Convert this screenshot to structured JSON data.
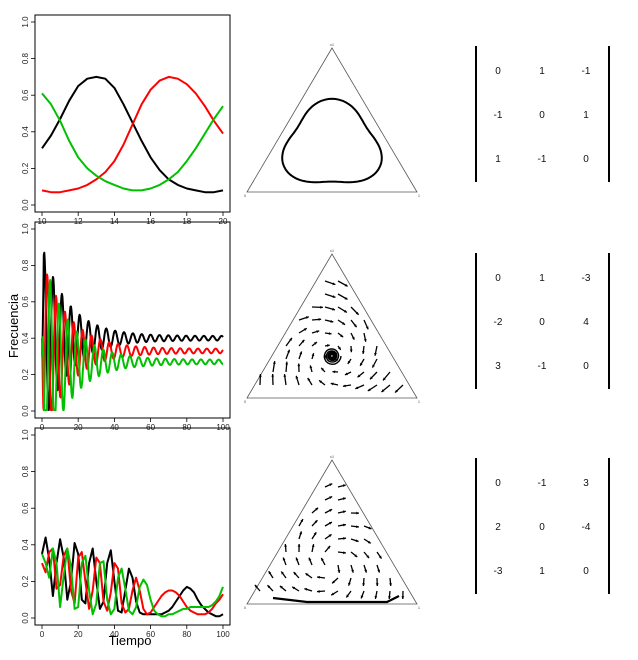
{
  "axis_labels": {
    "x": "Tiempo",
    "y": "Frecuencia"
  },
  "series_colors": [
    "#000000",
    "#ff0000",
    "#00c000"
  ],
  "chart_data": [
    {
      "type": "line",
      "xlim": [
        10,
        20
      ],
      "ylim": [
        0,
        1
      ],
      "xticks": [
        "10",
        "12",
        "14",
        "16",
        "18",
        "20"
      ],
      "yticks": [
        "0.0",
        "0.2",
        "0.4",
        "0.6",
        "0.8",
        "1.0"
      ],
      "series": [
        {
          "color": "#000000",
          "x": [
            10,
            10.5,
            11,
            11.5,
            12,
            12.5,
            13,
            13.5,
            14,
            14.5,
            15,
            15.5,
            16,
            16.5,
            17,
            17.5,
            18,
            18.5,
            19,
            19.5,
            20
          ],
          "y": [
            0.31,
            0.38,
            0.47,
            0.57,
            0.65,
            0.69,
            0.7,
            0.69,
            0.64,
            0.55,
            0.45,
            0.35,
            0.26,
            0.19,
            0.14,
            0.11,
            0.09,
            0.08,
            0.07,
            0.07,
            0.08
          ]
        },
        {
          "color": "#ff0000",
          "x": [
            10,
            10.5,
            11,
            11.5,
            12,
            12.5,
            13,
            13.5,
            14,
            14.5,
            15,
            15.5,
            16,
            16.5,
            17,
            17.5,
            18,
            18.5,
            19,
            19.5,
            20
          ],
          "y": [
            0.08,
            0.07,
            0.07,
            0.08,
            0.09,
            0.11,
            0.14,
            0.18,
            0.24,
            0.33,
            0.44,
            0.55,
            0.63,
            0.68,
            0.7,
            0.69,
            0.66,
            0.61,
            0.54,
            0.46,
            0.39
          ]
        },
        {
          "color": "#00c000",
          "x": [
            10,
            10.5,
            11,
            11.5,
            12,
            12.5,
            13,
            13.5,
            14,
            14.5,
            15,
            15.5,
            16,
            16.5,
            17,
            17.5,
            18,
            18.5,
            19,
            19.5,
            20
          ],
          "y": [
            0.61,
            0.55,
            0.46,
            0.35,
            0.26,
            0.2,
            0.16,
            0.13,
            0.11,
            0.09,
            0.08,
            0.08,
            0.09,
            0.11,
            0.14,
            0.18,
            0.24,
            0.31,
            0.39,
            0.47,
            0.54
          ]
        }
      ]
    },
    {
      "type": "line",
      "xlim": [
        0,
        100
      ],
      "ylim": [
        0,
        1
      ],
      "xticks": [
        "0",
        "20",
        "40",
        "60",
        "80",
        "100"
      ],
      "yticks": [
        "0.0",
        "0.2",
        "0.4",
        "0.6",
        "0.8",
        "1.0"
      ],
      "oscillation": {
        "period": 4.9,
        "decay": 0.07
      },
      "series": [
        {
          "color": "#000000",
          "start": 0.3,
          "equilibrium": 0.4,
          "amplitude": 0.5
        },
        {
          "color": "#ff0000",
          "start": 0.4,
          "equilibrium": 0.33,
          "amplitude": 0.5
        },
        {
          "color": "#00c000",
          "start": 0.3,
          "equilibrium": 0.27,
          "amplitude": 0.6
        }
      ]
    },
    {
      "type": "line",
      "xlim": [
        0,
        100
      ],
      "ylim": [
        0,
        1
      ],
      "xticks": [
        "0",
        "20",
        "40",
        "60",
        "80",
        "100"
      ],
      "yticks": [
        "0.0",
        "0.2",
        "0.4",
        "0.6",
        "0.8",
        "1.0"
      ],
      "series": [
        {
          "color": "#000000",
          "x": [
            0,
            2,
            4,
            6,
            8,
            10,
            12,
            14,
            16,
            18,
            20,
            22,
            24,
            26,
            28,
            30,
            32,
            34,
            36,
            38,
            40,
            42,
            44,
            46,
            48,
            50,
            52,
            54,
            56,
            58,
            60,
            62,
            64,
            66,
            68,
            70,
            72,
            74,
            76,
            78,
            80,
            82,
            84,
            86,
            88,
            90,
            92,
            94,
            96,
            98,
            100
          ],
          "y": [
            0.35,
            0.44,
            0.32,
            0.12,
            0.3,
            0.43,
            0.33,
            0.1,
            0.2,
            0.41,
            0.35,
            0.1,
            0.08,
            0.3,
            0.38,
            0.2,
            0.05,
            0.09,
            0.3,
            0.37,
            0.2,
            0.04,
            0.03,
            0.15,
            0.27,
            0.22,
            0.09,
            0.03,
            0.02,
            0.02,
            0.02,
            0.02,
            0.02,
            0.02,
            0.03,
            0.04,
            0.06,
            0.09,
            0.12,
            0.15,
            0.17,
            0.16,
            0.14,
            0.1,
            0.07,
            0.05,
            0.03,
            0.02,
            0.01,
            0.01,
            0.02
          ]
        },
        {
          "color": "#ff0000",
          "x": [
            0,
            2,
            4,
            6,
            8,
            10,
            12,
            14,
            16,
            18,
            20,
            22,
            24,
            26,
            28,
            30,
            32,
            34,
            36,
            38,
            40,
            42,
            44,
            46,
            48,
            50,
            52,
            54,
            56,
            58,
            60,
            62,
            64,
            66,
            68,
            70,
            72,
            74,
            76,
            78,
            80,
            82,
            84,
            86,
            88,
            90,
            92,
            94,
            96,
            98,
            100
          ],
          "y": [
            0.3,
            0.25,
            0.36,
            0.38,
            0.16,
            0.18,
            0.34,
            0.38,
            0.15,
            0.08,
            0.33,
            0.36,
            0.2,
            0.05,
            0.15,
            0.33,
            0.3,
            0.09,
            0.04,
            0.14,
            0.3,
            0.27,
            0.08,
            0.03,
            0.05,
            0.15,
            0.22,
            0.15,
            0.05,
            0.02,
            0.03,
            0.06,
            0.09,
            0.12,
            0.14,
            0.15,
            0.15,
            0.14,
            0.12,
            0.09,
            0.06,
            0.04,
            0.03,
            0.02,
            0.02,
            0.02,
            0.03,
            0.05,
            0.08,
            0.1,
            0.13
          ]
        },
        {
          "color": "#00c000",
          "x": [
            0,
            2,
            4,
            6,
            8,
            10,
            12,
            14,
            16,
            18,
            20,
            22,
            24,
            26,
            28,
            30,
            32,
            34,
            36,
            38,
            40,
            42,
            44,
            46,
            48,
            50,
            52,
            54,
            56,
            58,
            60,
            62,
            64,
            66,
            68,
            70,
            72,
            74,
            76,
            78,
            80,
            82,
            84,
            86,
            88,
            90,
            92,
            94,
            96,
            98,
            100
          ],
          "y": [
            0.35,
            0.3,
            0.22,
            0.38,
            0.3,
            0.06,
            0.23,
            0.38,
            0.28,
            0.05,
            0.06,
            0.3,
            0.34,
            0.15,
            0.02,
            0.08,
            0.3,
            0.31,
            0.1,
            0.02,
            0.05,
            0.22,
            0.27,
            0.16,
            0.04,
            0.02,
            0.06,
            0.17,
            0.21,
            0.18,
            0.1,
            0.04,
            0.02,
            0.01,
            0.01,
            0.02,
            0.02,
            0.03,
            0.04,
            0.05,
            0.05,
            0.06,
            0.06,
            0.06,
            0.06,
            0.06,
            0.06,
            0.07,
            0.09,
            0.12,
            0.17
          ]
        }
      ]
    }
  ],
  "simplex_vertex_labels": {
    "top": "x1",
    "left": "0",
    "right": "1"
  },
  "simplex_plots": [
    {
      "type": "orbit"
    },
    {
      "type": "vector-field",
      "focus": "inward-spiral"
    },
    {
      "type": "vector-field",
      "focus": "outward-spiral"
    }
  ],
  "payoff_matrices": [
    [
      [
        "0",
        "1",
        "-1"
      ],
      [
        "-1",
        "0",
        "1"
      ],
      [
        "1",
        "-1",
        "0"
      ]
    ],
    [
      [
        "0",
        "1",
        "-3"
      ],
      [
        "-2",
        "0",
        "4"
      ],
      [
        "3",
        "-1",
        "0"
      ]
    ],
    [
      [
        "0",
        "-1",
        "3"
      ],
      [
        "2",
        "0",
        "-4"
      ],
      [
        "-3",
        "1",
        "0"
      ]
    ]
  ]
}
